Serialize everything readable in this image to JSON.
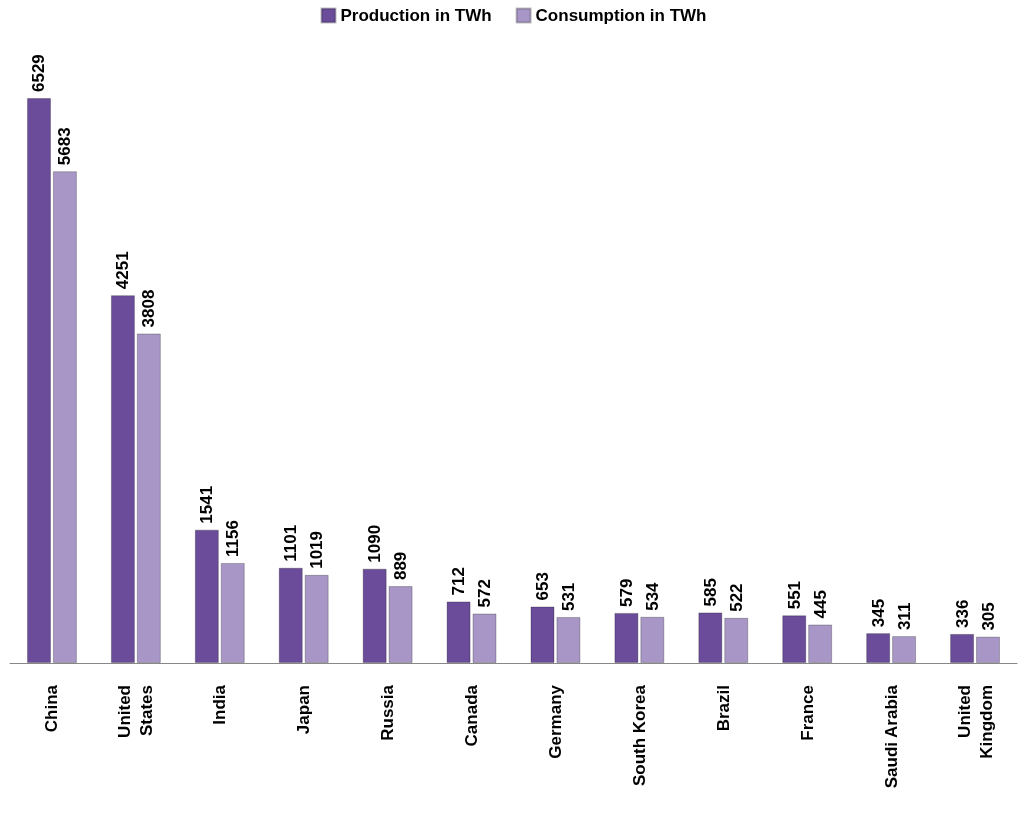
{
  "chart_data": {
    "type": "bar",
    "categories": [
      "China",
      "United\nStates",
      "India",
      "Japan",
      "Russia",
      "Canada",
      "Germany",
      "South Korea",
      "Brazil",
      "France",
      "Saudi Arabia",
      "United\nKingdom"
    ],
    "series": [
      {
        "name": "Production in TWh",
        "color": "#6b4c9a",
        "values": [
          6529,
          4251,
          1541,
          1101,
          1090,
          712,
          653,
          579,
          585,
          551,
          345,
          336
        ]
      },
      {
        "name": "Consumption in TWh",
        "color": "#a897c6",
        "values": [
          5683,
          3808,
          1156,
          1019,
          889,
          572,
          531,
          534,
          522,
          445,
          311,
          305
        ]
      }
    ],
    "data_labels": true,
    "legend": "top",
    "grid": false,
    "tick_labels": "x"
  }
}
